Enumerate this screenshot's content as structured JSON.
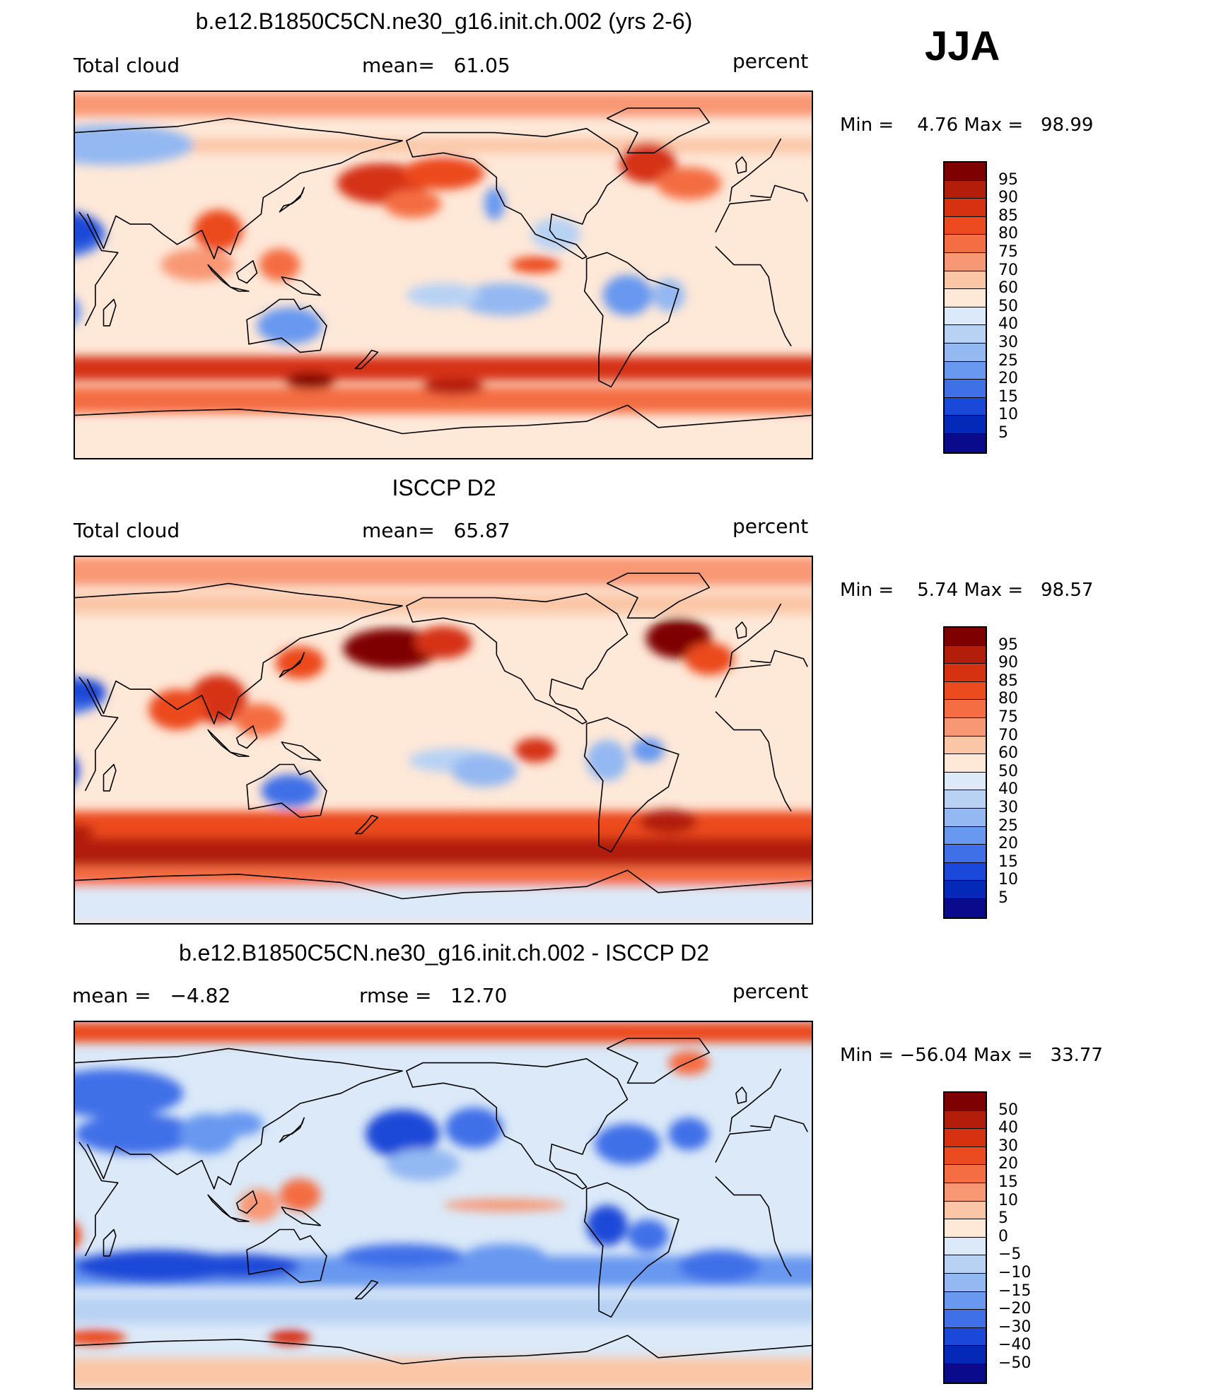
{
  "season": "JJA",
  "panels": [
    {
      "title": "b.e12.B1850C5CN.ne30_g16.init.ch.002 (yrs 2-6)",
      "left_label": "Total cloud",
      "center_label": "mean=   61.05",
      "right_label": "percent",
      "minmax": "Min =    4.76 Max =   98.99"
    },
    {
      "title": "ISCCP D2",
      "left_label": "Total cloud",
      "center_label": "mean=   65.87",
      "right_label": "percent",
      "minmax": "Min =    5.74 Max =   98.57"
    },
    {
      "title": "b.e12.B1850C5CN.ne30_g16.init.ch.002 - ISCCP D2",
      "left_label": "mean =   −4.82",
      "center_label": "rmse =   12.70",
      "right_label": "percent",
      "minmax": "Min = −56.04 Max =   33.77"
    }
  ],
  "chart_data": [
    {
      "type": "heatmap",
      "title": "b.e12.B1850C5CN.ne30_g16.init.ch.002 (yrs 2-6)",
      "variable": "Total cloud",
      "units": "percent",
      "mean": 61.05,
      "min": 4.76,
      "max": 98.99,
      "colorbar_levels": [
        95,
        90,
        85,
        80,
        75,
        70,
        60,
        50,
        40,
        30,
        25,
        20,
        15,
        10,
        5
      ],
      "colors": [
        "#7f0000",
        "#b21e0a",
        "#d63212",
        "#ec4a1f",
        "#f46d43",
        "#f89773",
        "#fbc6a6",
        "#fee8d8",
        "#dbe9f8",
        "#b8d2f4",
        "#93b8f2",
        "#6898f0",
        "#3f70e8",
        "#1a48d8",
        "#0428b8",
        "#0a0a8c"
      ]
    },
    {
      "type": "heatmap",
      "title": "ISCCP D2",
      "variable": "Total cloud",
      "units": "percent",
      "mean": 65.87,
      "min": 5.74,
      "max": 98.57,
      "colorbar_levels": [
        95,
        90,
        85,
        80,
        75,
        70,
        60,
        50,
        40,
        30,
        25,
        20,
        15,
        10,
        5
      ],
      "colors": [
        "#7f0000",
        "#b21e0a",
        "#d63212",
        "#ec4a1f",
        "#f46d43",
        "#f89773",
        "#fbc6a6",
        "#fee8d8",
        "#dbe9f8",
        "#b8d2f4",
        "#93b8f2",
        "#6898f0",
        "#3f70e8",
        "#1a48d8",
        "#0428b8",
        "#0a0a8c"
      ]
    },
    {
      "type": "heatmap",
      "title": "b.e12.B1850C5CN.ne30_g16.init.ch.002 - ISCCP D2",
      "units": "percent",
      "mean": -4.82,
      "rmse": 12.7,
      "min": -56.04,
      "max": 33.77,
      "colorbar_levels": [
        "50",
        "40",
        "30",
        "20",
        "15",
        "10",
        "5",
        "0",
        "−5",
        "−10",
        "−15",
        "−20",
        "−30",
        "−40",
        "−50"
      ],
      "colors": [
        "#7f0000",
        "#b21e0a",
        "#d63212",
        "#ec4a1f",
        "#f46d43",
        "#f89773",
        "#fbc6a6",
        "#fee8d8",
        "#dbe9f8",
        "#b8d2f4",
        "#93b8f2",
        "#6898f0",
        "#3f70e8",
        "#1a48d8",
        "#0428b8",
        "#0a0a8c"
      ]
    }
  ]
}
